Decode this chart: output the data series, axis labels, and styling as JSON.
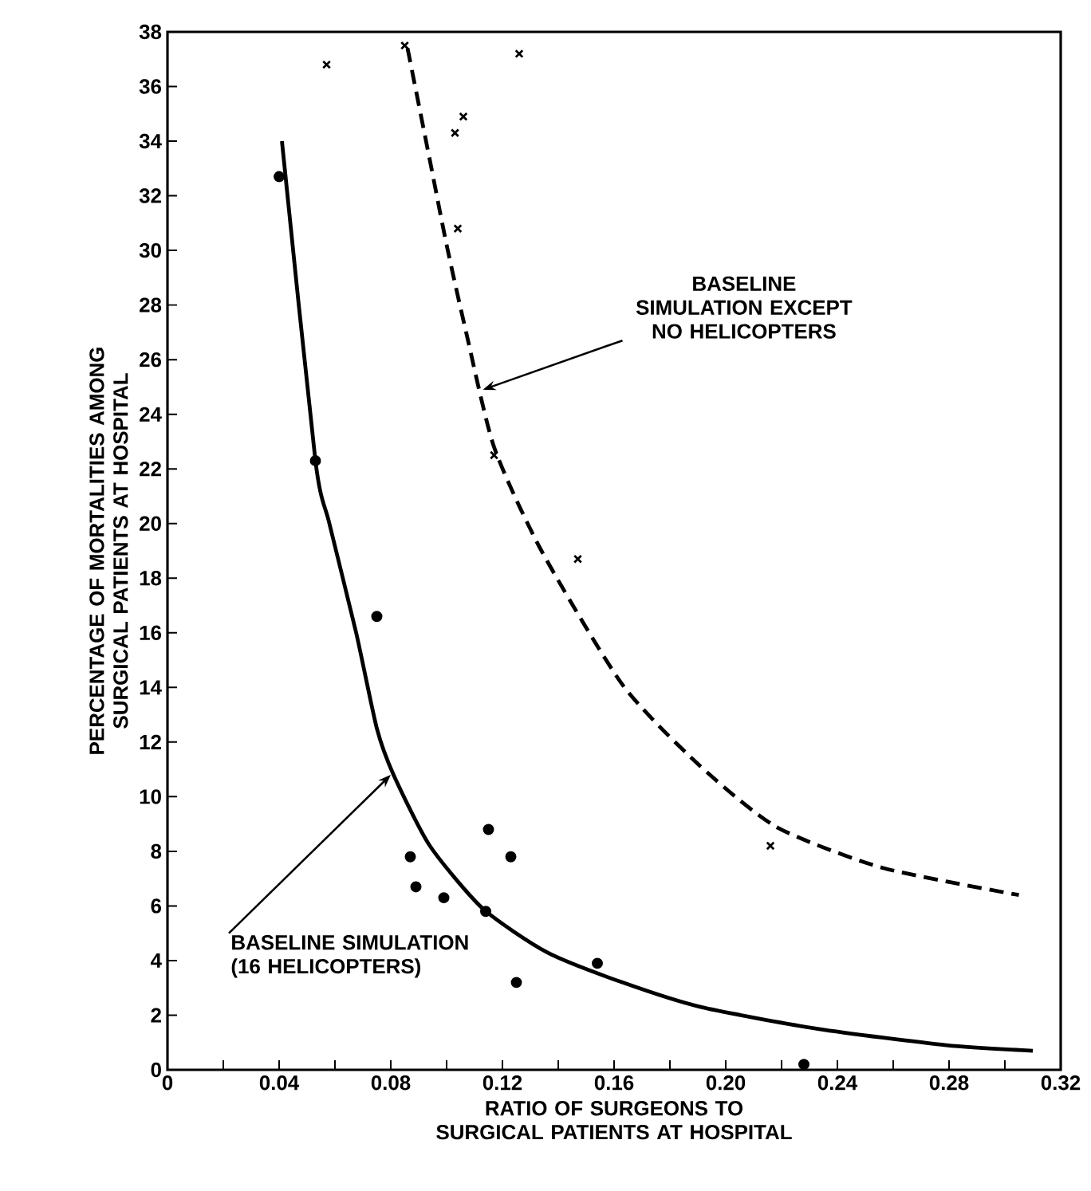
{
  "chart_data": {
    "type": "scatter",
    "xlabel": "RATIO OF SURGEONS TO SURGICAL PATIENTS AT HOSPITAL",
    "ylabel": "PERCENTAGE OF MORTALITIES AMONG SURGICAL PATIENTS AT HOSPITAL",
    "xlim": [
      0,
      0.32
    ],
    "ylim": [
      0,
      38
    ],
    "xticks": [
      0,
      {
        "value": 0.02,
        "label": null
      },
      0.04,
      {
        "value": 0.06,
        "label": null
      },
      0.08,
      {
        "value": 0.1,
        "label": null
      },
      0.12,
      {
        "value": 0.14,
        "label": null
      },
      0.16,
      {
        "value": 0.18,
        "label": null
      },
      {
        "value": 0.2,
        "label": "0.20"
      },
      {
        "value": 0.22,
        "label": null
      },
      0.24,
      {
        "value": 0.26,
        "label": null
      },
      0.28,
      {
        "value": 0.3,
        "label": null
      },
      0.32
    ],
    "yticks": [
      0,
      2,
      4,
      6,
      8,
      10,
      12,
      14,
      16,
      18,
      20,
      22,
      24,
      26,
      28,
      30,
      32,
      34,
      36,
      38
    ],
    "grid": false,
    "series": [
      {
        "marker": "cross",
        "color": "#000000",
        "x": [
          0.057,
          0.085,
          0.126,
          0.103,
          0.106,
          0.104,
          0.117,
          0.147,
          0.216
        ],
        "values": [
          36.8,
          37.5,
          37.2,
          34.3,
          34.9,
          30.8,
          22.5,
          18.7,
          8.2
        ]
      },
      {
        "marker": "circle",
        "color": "#000000",
        "x": [
          0.04,
          0.053,
          0.075,
          0.087,
          0.089,
          0.099,
          0.115,
          0.123,
          0.114,
          0.125,
          0.154,
          0.228
        ],
        "values": [
          32.7,
          22.3,
          16.6,
          7.8,
          6.7,
          6.3,
          8.8,
          7.8,
          5.8,
          3.2,
          3.9,
          0.2
        ]
      },
      {
        "type": "line",
        "marker": "none",
        "line_style": "solid",
        "color": "#000000",
        "x": [
          0.041,
          0.053,
          0.058,
          0.0676,
          0.075,
          0.081,
          0.094,
          0.113,
          0.136,
          0.163,
          0.191,
          0.233,
          0.279,
          0.31
        ],
        "values": [
          34,
          22.3,
          20,
          16,
          12.5,
          10.8,
          8.2,
          5.9,
          4.3,
          3.2,
          2.3,
          1.5,
          0.9,
          0.7
        ]
      },
      {
        "type": "line",
        "marker": "none",
        "line_style": "dashed",
        "color": "#000000",
        "x": [
          0.086,
          0.094,
          0.1,
          0.107,
          0.117,
          0.134,
          0.163,
          0.19,
          0.218,
          0.256,
          0.305
        ],
        "values": [
          37.4,
          33.3,
          30.2,
          27.0,
          22.8,
          19.0,
          14.1,
          11.2,
          8.9,
          7.4,
          6.4
        ]
      }
    ],
    "annotations": [
      {
        "text": "BASELINE SIMULATION EXCEPT NO HELICOPTERS",
        "x": 0.113,
        "y": 24.9
      },
      {
        "text": "BASELINE SIMULATION (16 HELICOPTERS)",
        "x": 0.08,
        "y": 10.8
      }
    ]
  }
}
